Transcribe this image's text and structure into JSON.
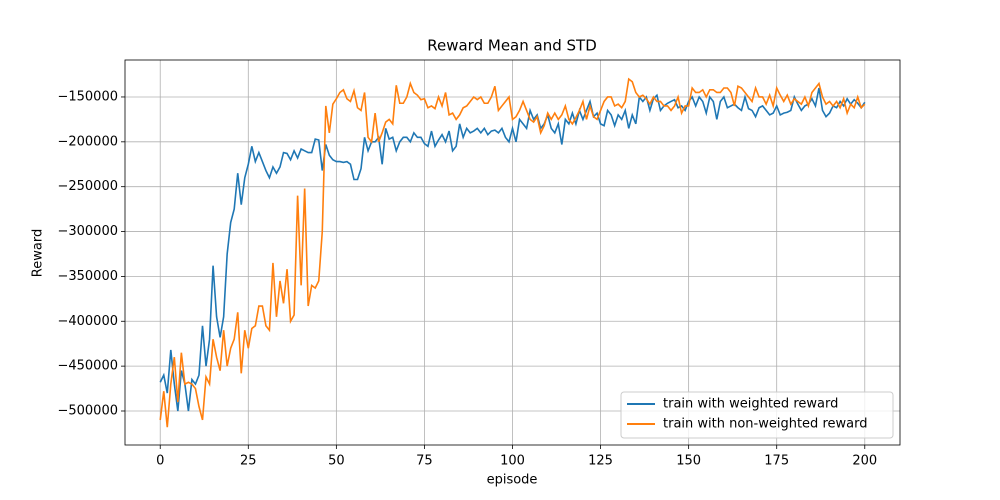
{
  "chart_data": {
    "type": "line",
    "title": "Reward Mean and STD",
    "xlabel": "episode",
    "ylabel": "Reward",
    "x": [
      0,
      1,
      2,
      3,
      4,
      5,
      6,
      7,
      8,
      9,
      10,
      11,
      12,
      13,
      14,
      15,
      16,
      17,
      18,
      19,
      20,
      21,
      22,
      23,
      24,
      25,
      26,
      27,
      28,
      29,
      30,
      31,
      32,
      33,
      34,
      35,
      36,
      37,
      38,
      39,
      40,
      41,
      42,
      43,
      44,
      45,
      46,
      47,
      48,
      49,
      50,
      51,
      52,
      53,
      54,
      55,
      56,
      57,
      58,
      59,
      60,
      61,
      62,
      63,
      64,
      65,
      66,
      67,
      68,
      69,
      70,
      71,
      72,
      73,
      74,
      75,
      76,
      77,
      78,
      79,
      80,
      81,
      82,
      83,
      84,
      85,
      86,
      87,
      88,
      89,
      90,
      91,
      92,
      93,
      94,
      95,
      96,
      97,
      98,
      99,
      100,
      101,
      102,
      103,
      104,
      105,
      106,
      107,
      108,
      109,
      110,
      111,
      112,
      113,
      114,
      115,
      116,
      117,
      118,
      119,
      120,
      121,
      122,
      123,
      124,
      125,
      126,
      127,
      128,
      129,
      130,
      131,
      132,
      133,
      134,
      135,
      136,
      137,
      138,
      139,
      140,
      141,
      142,
      143,
      144,
      145,
      146,
      147,
      148,
      149,
      150,
      151,
      152,
      153,
      154,
      155,
      156,
      157,
      158,
      159,
      160,
      161,
      162,
      163,
      164,
      165,
      166,
      167,
      168,
      169,
      170,
      171,
      172,
      173,
      174,
      175,
      176,
      177,
      178,
      179,
      180,
      181,
      182,
      183,
      184,
      185,
      186,
      187,
      188,
      189,
      190,
      191,
      192,
      193,
      194,
      195,
      196,
      197,
      198,
      199,
      200
    ],
    "series": [
      {
        "name": "train with weighted reward",
        "color": "#1f77b4",
        "values": [
          -468000,
          -460000,
          -480000,
          -432000,
          -470000,
          -500000,
          -455000,
          -470000,
          -500000,
          -465000,
          -470000,
          -460000,
          -405000,
          -450000,
          -420000,
          -338000,
          -395000,
          -418000,
          -395000,
          -325000,
          -290000,
          -275000,
          -235000,
          -270000,
          -240000,
          -225000,
          -205000,
          -222000,
          -212000,
          -222000,
          -232000,
          -240000,
          -228000,
          -235000,
          -228000,
          -212000,
          -213000,
          -220000,
          -210000,
          -218000,
          -208000,
          -210000,
          -212000,
          -212000,
          -197000,
          -198000,
          -232000,
          -203000,
          -215000,
          -220000,
          -222000,
          -222000,
          -223000,
          -222000,
          -225000,
          -242000,
          -242000,
          -230000,
          -195000,
          -210000,
          -200000,
          -200000,
          -195000,
          -225000,
          -185000,
          -197000,
          -195000,
          -210000,
          -200000,
          -195000,
          -195000,
          -200000,
          -190000,
          -195000,
          -195000,
          -202000,
          -205000,
          -188000,
          -205000,
          -198000,
          -192000,
          -200000,
          -188000,
          -210000,
          -205000,
          -180000,
          -195000,
          -185000,
          -190000,
          -188000,
          -185000,
          -190000,
          -185000,
          -192000,
          -188000,
          -187000,
          -190000,
          -185000,
          -195000,
          -200000,
          -185000,
          -200000,
          -175000,
          -180000,
          -185000,
          -165000,
          -175000,
          -170000,
          -185000,
          -180000,
          -170000,
          -185000,
          -190000,
          -180000,
          -203000,
          -175000,
          -180000,
          -168000,
          -180000,
          -165000,
          -175000,
          -165000,
          -155000,
          -172000,
          -168000,
          -180000,
          -182000,
          -165000,
          -170000,
          -182000,
          -170000,
          -175000,
          -165000,
          -185000,
          -170000,
          -180000,
          -150000,
          -155000,
          -150000,
          -165000,
          -152000,
          -148000,
          -165000,
          -160000,
          -157000,
          -155000,
          -153000,
          -162000,
          -160000,
          -165000,
          -155000,
          -150000,
          -160000,
          -150000,
          -155000,
          -168000,
          -150000,
          -155000,
          -175000,
          -155000,
          -150000,
          -162000,
          -160000,
          -158000,
          -162000,
          -165000,
          -150000,
          -163000,
          -165000,
          -172000,
          -162000,
          -160000,
          -165000,
          -170000,
          -168000,
          -160000,
          -170000,
          -168000,
          -167000,
          -165000,
          -150000,
          -158000,
          -165000,
          -160000,
          -158000,
          -152000,
          -160000,
          -140000,
          -165000,
          -172000,
          -168000,
          -160000,
          -162000,
          -155000,
          -160000,
          -152000,
          -158000,
          -153000,
          -157000,
          -162000,
          -156000
        ]
      },
      {
        "name": "train with non-weighted reward",
        "color": "#ff7f0e",
        "values": [
          -510000,
          -478000,
          -518000,
          -470000,
          -440000,
          -490000,
          -435000,
          -470000,
          -468000,
          -470000,
          -475000,
          -495000,
          -510000,
          -462000,
          -470000,
          -420000,
          -440000,
          -455000,
          -410000,
          -450000,
          -430000,
          -420000,
          -390000,
          -458000,
          -410000,
          -430000,
          -408000,
          -405000,
          -383000,
          -383000,
          -405000,
          -410000,
          -335000,
          -395000,
          -355000,
          -380000,
          -342000,
          -400000,
          -393000,
          -260000,
          -360000,
          -252000,
          -383000,
          -360000,
          -363000,
          -355000,
          -300000,
          -160000,
          -190000,
          -158000,
          -152000,
          -145000,
          -142000,
          -152000,
          -155000,
          -143000,
          -162000,
          -165000,
          -145000,
          -195000,
          -200000,
          -168000,
          -200000,
          -190000,
          -178000,
          -175000,
          -180000,
          -137000,
          -157000,
          -157000,
          -150000,
          -135000,
          -145000,
          -148000,
          -153000,
          -152000,
          -162000,
          -160000,
          -163000,
          -150000,
          -160000,
          -145000,
          -170000,
          -168000,
          -175000,
          -170000,
          -162000,
          -160000,
          -155000,
          -150000,
          -153000,
          -150000,
          -157000,
          -157000,
          -150000,
          -138000,
          -165000,
          -160000,
          -155000,
          -150000,
          -175000,
          -172000,
          -165000,
          -155000,
          -165000,
          -175000,
          -178000,
          -172000,
          -190000,
          -182000,
          -168000,
          -175000,
          -168000,
          -175000,
          -170000,
          -160000,
          -175000,
          -180000,
          -173000,
          -165000,
          -155000,
          -175000,
          -160000,
          -172000,
          -175000,
          -165000,
          -155000,
          -150000,
          -150000,
          -160000,
          -158000,
          -162000,
          -155000,
          -130000,
          -133000,
          -145000,
          -150000,
          -148000,
          -152000,
          -158000,
          -150000,
          -155000,
          -155000,
          -160000,
          -160000,
          -165000,
          -160000,
          -150000,
          -168000,
          -160000,
          -160000,
          -140000,
          -145000,
          -145000,
          -142000,
          -150000,
          -142000,
          -142000,
          -145000,
          -145000,
          -140000,
          -140000,
          -145000,
          -160000,
          -138000,
          -140000,
          -145000,
          -150000,
          -155000,
          -140000,
          -150000,
          -150000,
          -158000,
          -148000,
          -160000,
          -140000,
          -148000,
          -155000,
          -148000,
          -158000,
          -152000,
          -155000,
          -158000,
          -150000,
          -160000,
          -145000,
          -140000,
          -135000,
          -150000,
          -158000,
          -155000,
          -160000,
          -155000,
          -162000,
          -152000,
          -168000,
          -158000,
          -162000,
          -150000,
          -162000,
          -158000
        ]
      }
    ],
    "xlim": [
      -10,
      210
    ],
    "xticks": [
      0,
      25,
      50,
      75,
      100,
      125,
      150,
      175,
      200
    ],
    "ylim": [
      -537900,
      -108800
    ],
    "yticks": [
      {
        "value": -500000,
        "label": "−500000"
      },
      {
        "value": -450000,
        "label": "−450000"
      },
      {
        "value": -400000,
        "label": "−400000"
      },
      {
        "value": -350000,
        "label": "−350000"
      },
      {
        "value": -300000,
        "label": "−300000"
      },
      {
        "value": -250000,
        "label": "−250000"
      },
      {
        "value": -200000,
        "label": "−200000"
      },
      {
        "value": -150000,
        "label": "−150000"
      }
    ],
    "grid": true,
    "legend": "lower right"
  }
}
